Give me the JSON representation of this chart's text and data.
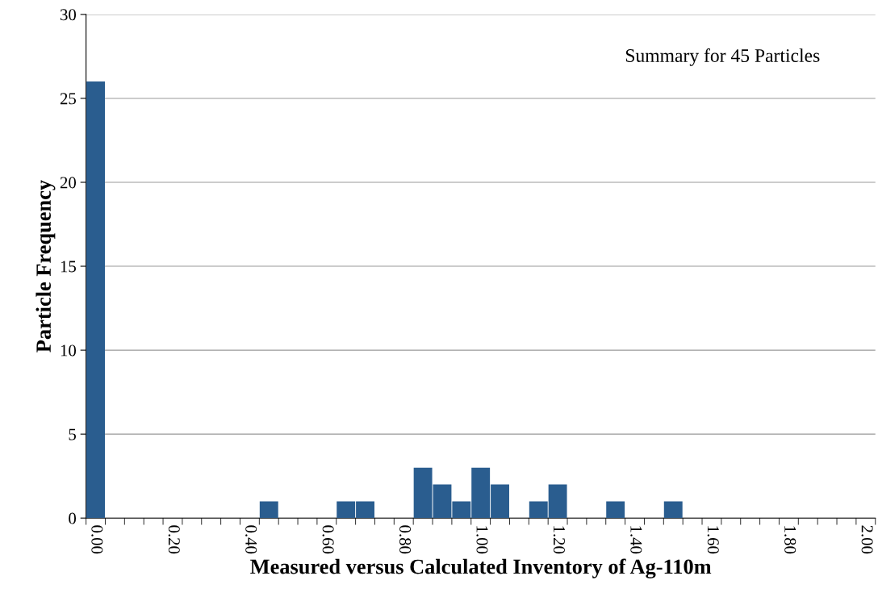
{
  "chart_data": {
    "type": "bar",
    "xlabel": "Measured versus Calculated Inventory of Ag-110m",
    "ylabel": "Particle Frequency",
    "annotations": [
      "Summary for 45 Particles"
    ],
    "categories": [
      "0.00",
      null,
      null,
      null,
      "0.20",
      null,
      null,
      null,
      "0.40",
      null,
      null,
      null,
      "0.60",
      null,
      null,
      null,
      "0.80",
      null,
      null,
      null,
      "1.00",
      null,
      null,
      null,
      "1.20",
      null,
      null,
      null,
      "1.40",
      null,
      null,
      null,
      "1.60",
      null,
      null,
      null,
      "1.80",
      null,
      null,
      null,
      "2.00"
    ],
    "values": [
      26,
      0,
      0,
      0,
      0,
      0,
      0,
      0,
      0,
      1,
      0,
      0,
      0,
      1,
      1,
      0,
      0,
      3,
      2,
      1,
      3,
      2,
      0,
      1,
      2,
      0,
      0,
      1,
      0,
      0,
      1,
      0,
      0,
      0,
      0,
      0,
      0,
      0,
      0,
      0,
      0
    ],
    "color": "#2a5d8f",
    "ylim": [
      0,
      30
    ],
    "yticks": [
      0,
      5,
      10,
      15,
      20,
      25,
      30
    ],
    "grid": "y"
  }
}
